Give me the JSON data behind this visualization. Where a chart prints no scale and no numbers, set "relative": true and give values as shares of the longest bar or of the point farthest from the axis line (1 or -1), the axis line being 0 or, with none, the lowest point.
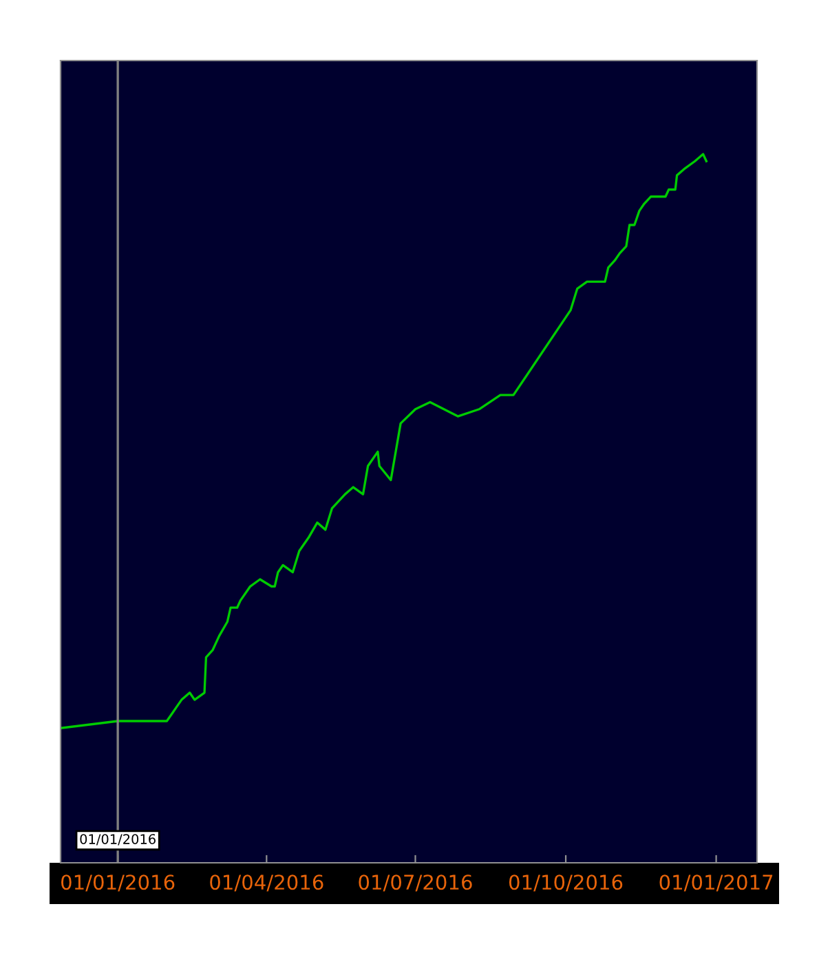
{
  "chart_data": {
    "type": "line",
    "relative": true,
    "x": [
      "2015-11-27",
      "2016-01-01",
      "2016-01-31",
      "2016-02-03",
      "2016-02-06",
      "2016-02-09",
      "2016-02-14",
      "2016-02-17",
      "2016-02-23",
      "2016-02-24",
      "2016-02-28",
      "2016-03-03",
      "2016-03-08",
      "2016-03-10",
      "2016-03-14",
      "2016-03-16",
      "2016-03-22",
      "2016-03-28",
      "2016-04-04",
      "2016-04-06",
      "2016-04-08",
      "2016-04-11",
      "2016-04-17",
      "2016-04-21",
      "2016-04-27",
      "2016-05-02",
      "2016-05-07",
      "2016-05-11",
      "2016-05-19",
      "2016-05-24",
      "2016-05-30",
      "2016-06-02",
      "2016-06-08",
      "2016-06-09",
      "2016-06-16",
      "2016-06-22",
      "2016-07-01",
      "2016-07-10",
      "2016-07-27",
      "2016-08-09",
      "2016-08-22",
      "2016-08-30",
      "2016-10-04",
      "2016-10-08",
      "2016-10-14",
      "2016-10-25",
      "2016-10-27",
      "2016-10-31",
      "2016-11-03",
      "2016-11-07",
      "2016-11-09",
      "2016-11-12",
      "2016-11-15",
      "2016-11-18",
      "2016-11-22",
      "2016-11-28",
      "2016-12-01",
      "2016-12-03",
      "2016-12-07",
      "2016-12-08",
      "2016-12-13",
      "2016-12-19",
      "2016-12-24",
      "2016-12-26"
    ],
    "series": [
      {
        "color": "#00cc00",
        "values": [
          0.19,
          0.2,
          0.2,
          0.21,
          0.22,
          0.23,
          0.24,
          0.23,
          0.24,
          0.29,
          0.3,
          0.32,
          0.34,
          0.36,
          0.36,
          0.37,
          0.39,
          0.4,
          0.39,
          0.39,
          0.41,
          0.42,
          0.41,
          0.44,
          0.46,
          0.48,
          0.47,
          0.5,
          0.52,
          0.53,
          0.52,
          0.56,
          0.58,
          0.56,
          0.54,
          0.62,
          0.64,
          0.65,
          0.63,
          0.64,
          0.66,
          0.66,
          0.78,
          0.81,
          0.82,
          0.82,
          0.84,
          0.85,
          0.86,
          0.87,
          0.9,
          0.9,
          0.92,
          0.93,
          0.94,
          0.94,
          0.94,
          0.95,
          0.95,
          0.97,
          0.98,
          0.99,
          1,
          0.99
        ]
      }
    ],
    "xlim": [
      "2015-11-27",
      "2017-01-26"
    ],
    "xticks": [
      {
        "value": "2016-01-01",
        "label": "01/01/2016"
      },
      {
        "value": "2016-04-01",
        "label": "01/04/2016"
      },
      {
        "value": "2016-07-01",
        "label": "01/07/2016"
      },
      {
        "value": "2016-10-01",
        "label": "01/10/2016"
      },
      {
        "value": "2017-01-01",
        "label": "01/01/2017"
      }
    ],
    "ref_lines": [
      {
        "axis": "x",
        "value": "2016-01-01",
        "label": "01/01/2016",
        "color": "#808080"
      }
    ],
    "grid": false,
    "marker": "none",
    "line_style": "solid"
  }
}
